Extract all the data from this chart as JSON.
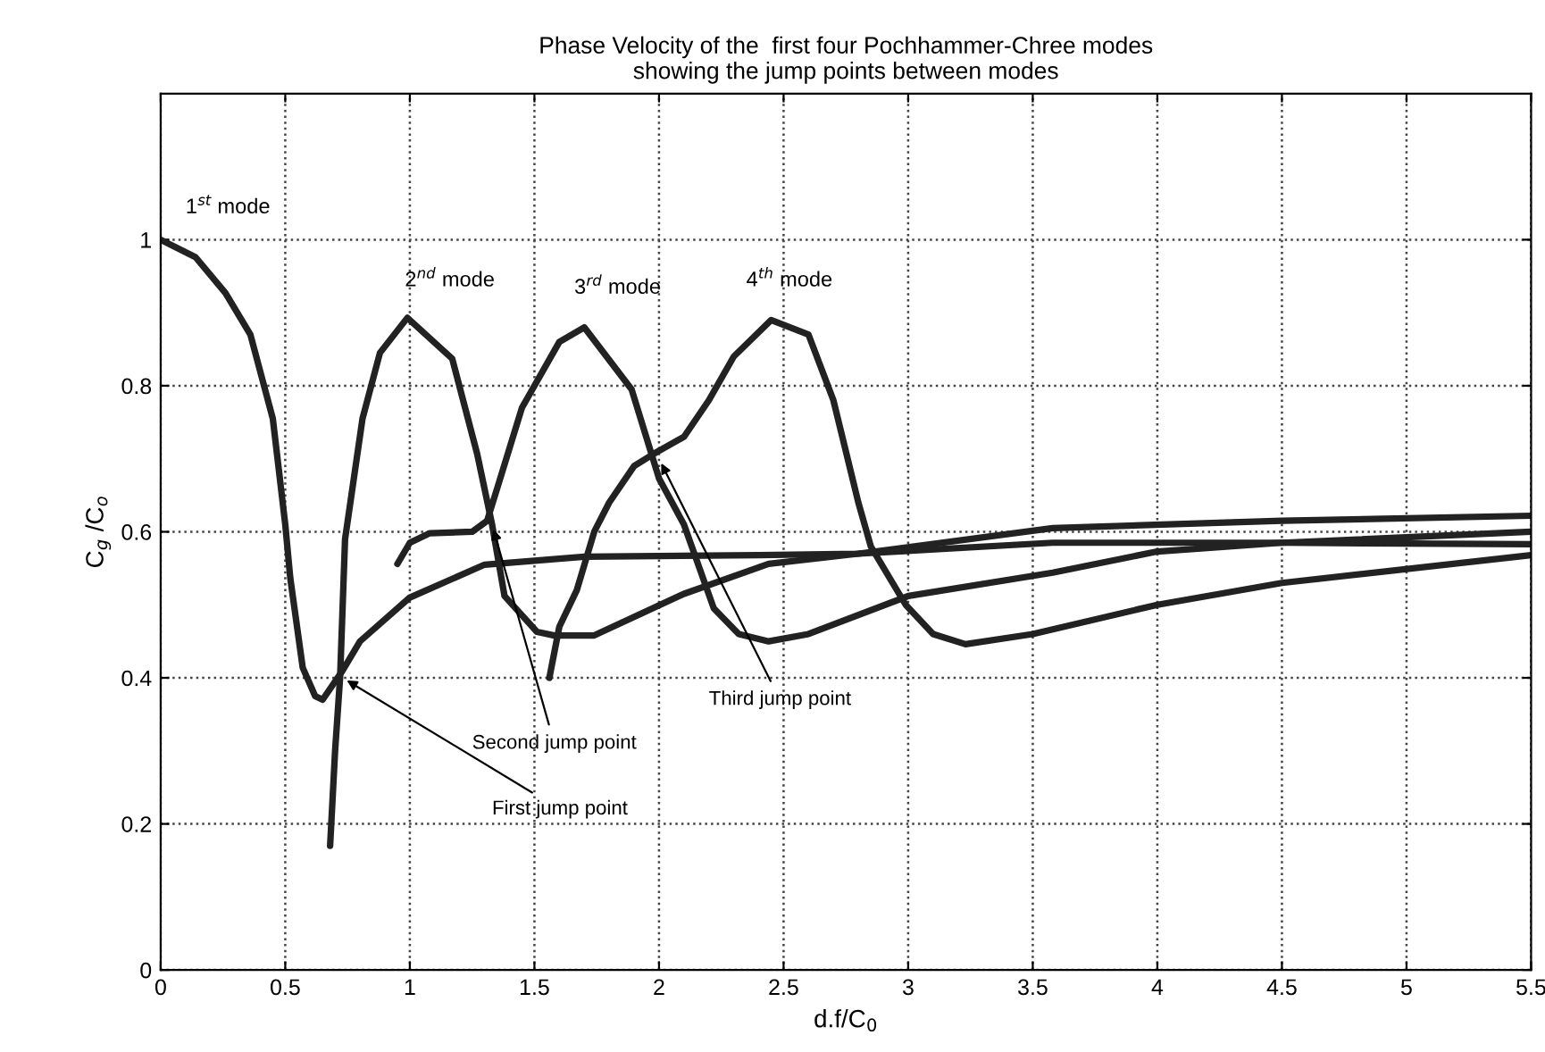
{
  "chart_data": {
    "type": "line",
    "title": "Phase Velocity of the  first four Pochhammer-Chree modes\nshowing the jump points between modes",
    "xlabel": "d.f/C$_{0}$",
    "ylabel": "C$_{g}$ /C$_{o}$",
    "xlim": [
      0,
      5.5
    ],
    "ylim": [
      0,
      1.2
    ],
    "xticks": [
      0,
      0.5,
      1,
      1.5,
      2,
      2.5,
      3,
      3.5,
      4,
      4.5,
      5,
      5.5
    ],
    "yticks": [
      0,
      0.2,
      0.4,
      0.6,
      0.8,
      1
    ],
    "grid": true,
    "marker": "none",
    "line_style": "solid",
    "series": [
      {
        "color": "#222222",
        "x": [
          0,
          0.14,
          0.26,
          0.36,
          0.45,
          0.5,
          0.52,
          0.57,
          0.62,
          0.65,
          0.73,
          0.8,
          1.0,
          1.3,
          1.7,
          2.4,
          2.8,
          3.58,
          4.5,
          5.5
        ],
        "values": [
          1,
          0.976,
          0.927,
          0.87,
          0.755,
          0.61,
          0.537,
          0.414,
          0.375,
          0.37,
          0.41,
          0.45,
          0.51,
          0.555,
          0.566,
          0.568,
          0.57,
          0.605,
          0.615,
          0.622
        ]
      },
      {
        "color": "#222222",
        "x": [
          0.68,
          0.7,
          0.72,
          0.74,
          0.81,
          0.88,
          0.99,
          1.17,
          1.27,
          1.33,
          1.38,
          1.51,
          1.58,
          1.74,
          2.1,
          2.44,
          2.8,
          3.58,
          4.5,
          5.5
        ],
        "values": [
          0.17,
          0.3,
          0.4,
          0.59,
          0.755,
          0.845,
          0.893,
          0.837,
          0.707,
          0.61,
          0.512,
          0.463,
          0.458,
          0.458,
          0.515,
          0.556,
          0.57,
          0.585,
          0.585,
          0.583
        ]
      },
      {
        "color": "#222222",
        "x": [
          0.95,
          1.0,
          1.08,
          1.25,
          1.31,
          1.36,
          1.45,
          1.5,
          1.6,
          1.7,
          1.89,
          2.0,
          2.1,
          2.22,
          2.32,
          2.44,
          2.6,
          3.0,
          3.58,
          4.0,
          4.5,
          5.5
        ],
        "values": [
          0.556,
          0.585,
          0.598,
          0.6,
          0.615,
          0.67,
          0.77,
          0.8,
          0.86,
          0.88,
          0.795,
          0.673,
          0.61,
          0.495,
          0.46,
          0.45,
          0.46,
          0.512,
          0.544,
          0.573,
          0.585,
          0.6
        ]
      },
      {
        "color": "#222222",
        "x": [
          1.56,
          1.6,
          1.67,
          1.74,
          1.8,
          1.9,
          1.98,
          2.1,
          2.2,
          2.3,
          2.45,
          2.6,
          2.7,
          2.8,
          2.85,
          2.99,
          3.1,
          3.23,
          3.5,
          4.0,
          4.5,
          5.5
        ],
        "values": [
          0.4,
          0.47,
          0.52,
          0.6,
          0.64,
          0.69,
          0.707,
          0.73,
          0.78,
          0.84,
          0.89,
          0.87,
          0.78,
          0.64,
          0.58,
          0.5,
          0.46,
          0.446,
          0.46,
          0.5,
          0.53,
          0.568
        ]
      }
    ],
    "annotations": [
      "1$^{st}$ mode",
      "2$^{nd}$ mode",
      "3$^{rd}$ mode",
      "4$^{th}$ mode",
      {
        "text": "First jump point",
        "x": 0.73,
        "y": 0.4
      },
      {
        "text": "Second jump point",
        "x": 1.33,
        "y": 0.61
      },
      {
        "text": "Third jump point",
        "x": 2.0,
        "y": 0.7
      }
    ]
  }
}
